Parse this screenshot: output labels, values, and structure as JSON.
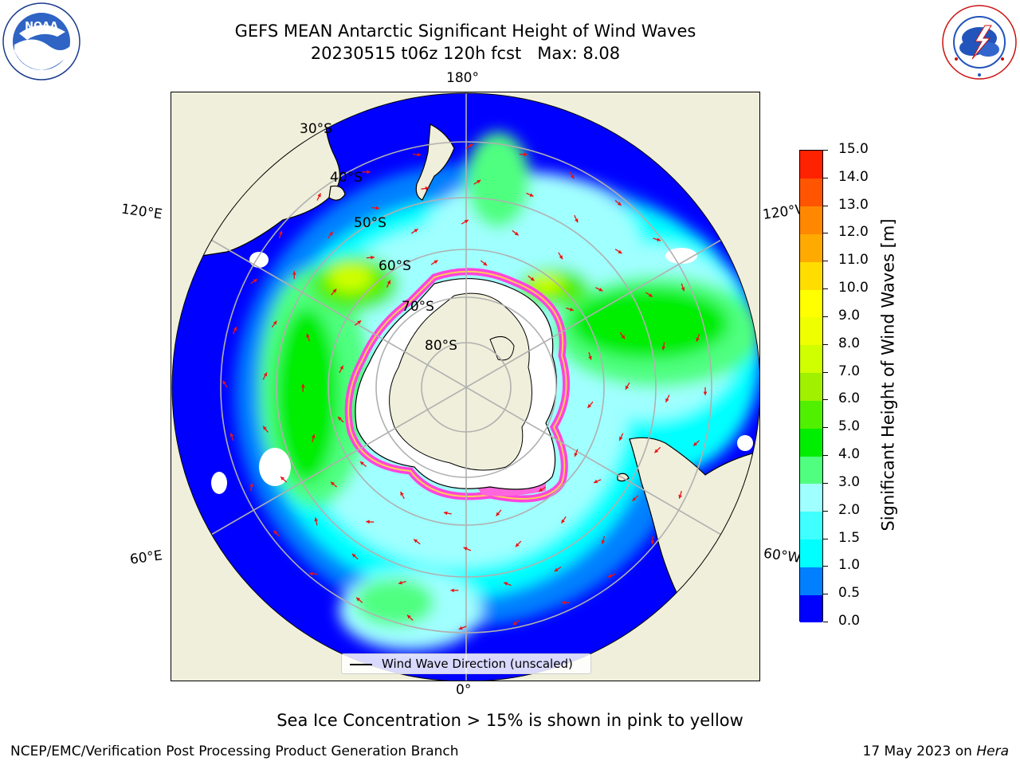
{
  "title": {
    "line1": "GEFS MEAN Antarctic Significant Height of Wind Waves",
    "line2": "20230515 t06z 120h fcst   Max: 8.08"
  },
  "logos": {
    "noaa_text": "NOAA",
    "noaa_ring": "NATIONAL OCEANIC AND ATMOSPHERIC ADMINISTRATION · U.S. DEPARTMENT OF COMMERCE",
    "nws_ring": "NATIONAL WEATHER SERVICE"
  },
  "map": {
    "projection": "south-polar-stereographic",
    "longitude_labels": {
      "top": "180°",
      "bottom": "0°",
      "upper_left": "120°E",
      "upper_right": "120°W",
      "lower_left": "60°E",
      "lower_right": "60°W"
    },
    "latitude_labels": [
      "30°S",
      "40°S",
      "50°S",
      "60°S",
      "70°S",
      "80°S"
    ],
    "colors": {
      "land": "#efefdb",
      "ice_shelf": "#ffffff",
      "grid": "#b0b0b0",
      "sea_ice_edge": "#ff44dd",
      "arrow": "#ee1111"
    }
  },
  "legend": {
    "label": "Wind Wave Direction (unscaled)"
  },
  "colorbar": {
    "title": "Significant Height of Wind Waves [m]",
    "ticks": [
      "0.0",
      "0.5",
      "1.0",
      "1.5",
      "2.0",
      "3.0",
      "4.0",
      "5.0",
      "6.0",
      "7.0",
      "8.0",
      "9.0",
      "10.0",
      "11.0",
      "12.0",
      "13.0",
      "14.0",
      "15.0"
    ],
    "colors": [
      "#0000ff",
      "#0080ff",
      "#00ffff",
      "#40ffff",
      "#a0ffff",
      "#50ff80",
      "#00ee00",
      "#50f000",
      "#a0f000",
      "#d0ff00",
      "#f0ff00",
      "#ffff00",
      "#ffdd00",
      "#ffaa00",
      "#ff8800",
      "#ff5500",
      "#ff2200"
    ],
    "units": "m"
  },
  "sea_ice_note": "Sea Ice Concentration > 15% is shown in pink to yellow",
  "footer": {
    "left": "NCEP/EMC/Verification Post Processing Product Generation Branch",
    "right_date": "17 May 2023 on",
    "right_machine": "Hera"
  }
}
